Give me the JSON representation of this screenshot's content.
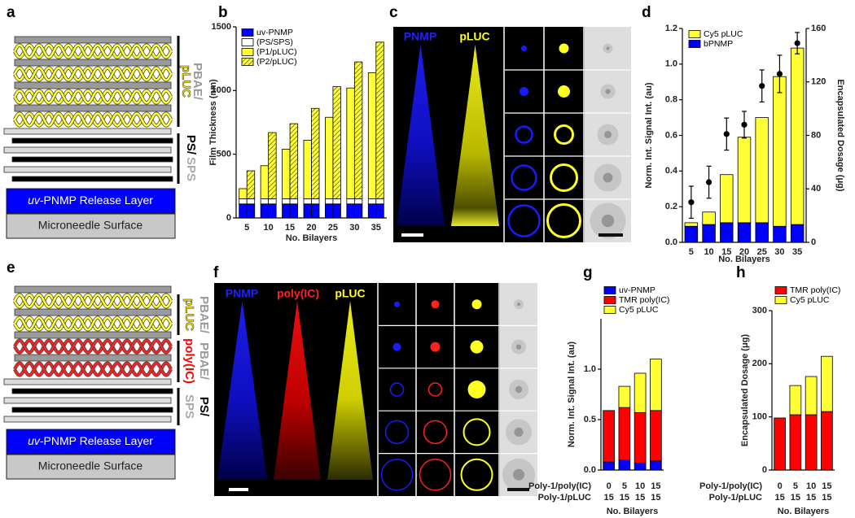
{
  "panels": {
    "a": {
      "letter": "a",
      "release_layer": {
        "prefix": "uv",
        "text": "-PNMP Release Layer"
      },
      "surface": "Microneedle Surface",
      "pbae": "PBAE/",
      "pluc": "pLUC",
      "ps": "PS/",
      "sps": "SPS"
    },
    "c": {
      "letter": "c",
      "channels": [
        "PNMP",
        "pLUC"
      ]
    },
    "e": {
      "letter": "e",
      "release_layer": {
        "prefix": "uv",
        "text": "-PNMP Release Layer"
      },
      "surface": "Microneedle Surface",
      "pbae_1": "PBAE/",
      "pluc": "pLUC",
      "pbae_2": "PBAE/",
      "polyic": "poly(IC)",
      "ps": "PS/",
      "sps": "SPS"
    },
    "f": {
      "letter": "f",
      "channels": [
        "PNMP",
        "poly(IC)",
        "pLUC"
      ]
    }
  },
  "chart_data": [
    {
      "panel": "b",
      "type": "bar",
      "ylabel": "Film Thickness (nm)",
      "xlabel": "No. Bilayers",
      "categories": [
        "5",
        "10",
        "15",
        "20",
        "25",
        "30",
        "35"
      ],
      "ylim": [
        0,
        1500
      ],
      "yticks": [
        0,
        500,
        1000,
        1500
      ],
      "legend": "upper left",
      "series": [
        {
          "name": "uv-PNMP",
          "color": "#0000ff",
          "values": [
            110,
            110,
            110,
            110,
            110,
            110,
            110
          ]
        },
        {
          "name": "(PS/SPS)",
          "color": "#ffffff",
          "values": [
            40,
            40,
            40,
            40,
            40,
            40,
            40
          ]
        },
        {
          "name": "(P1/pLUC)",
          "color": "#ffff33",
          "values": [
            80,
            260,
            390,
            460,
            640,
            870,
            990
          ]
        },
        {
          "name": "(P2/pLUC)",
          "color": "#ffff33",
          "pattern": "hatch",
          "values": [
            220,
            520,
            590,
            710,
            880,
            1075,
            1230
          ]
        }
      ]
    },
    {
      "panel": "d",
      "type": "bar",
      "ylabel": "Norm. Int. Signal Int. (au)",
      "y2label": "Encapsulated Dosage (μg)",
      "xlabel": "No. Bilayers",
      "categories": [
        "5",
        "10",
        "15",
        "20",
        "25",
        "30",
        "35"
      ],
      "ylim": [
        0,
        1.2
      ],
      "yticks": [
        {
          "value": 0,
          "label": "0.0"
        },
        0.2,
        0.4,
        0.6,
        0.8,
        {
          "value": 1,
          "label": "1.0"
        },
        1.2
      ],
      "y2lim": [
        0,
        160
      ],
      "y2ticks": [
        0,
        40,
        80,
        120,
        160
      ],
      "legend": "upper left",
      "series": [
        {
          "name": "Cy5 pLUC",
          "color": "#ffff33",
          "values": [
            0.02,
            0.07,
            0.27,
            0.48,
            0.59,
            0.84,
            0.99
          ]
        },
        {
          "name": "bPNMP",
          "color": "#0000ff",
          "values": [
            0.09,
            0.1,
            0.11,
            0.11,
            0.11,
            0.09,
            0.1
          ]
        },
        {
          "color": "#000000",
          "marker": "dot",
          "axis": "y2",
          "values": [
            30,
            45,
            81,
            88,
            117,
            126,
            149
          ],
          "errors": [
            12,
            12,
            12,
            10,
            12,
            14,
            8
          ]
        }
      ]
    },
    {
      "panel": "g",
      "type": "bar",
      "ylabel": "Norm. Int. Signal Int. (au)",
      "xlabel": "No. Bilayers",
      "category_rows": [
        {
          "label": "Poly-1/poly(IC)",
          "values": [
            0,
            5,
            10,
            15
          ]
        },
        {
          "label": "Poly-1/pLUC",
          "values": [
            15,
            15,
            15,
            15
          ]
        }
      ],
      "ylim": [
        0,
        1.5
      ],
      "yticks": [
        {
          "value": 0,
          "label": "0.0"
        },
        0.5,
        {
          "value": 1,
          "label": "1.0"
        }
      ],
      "legend": "upper left",
      "series": [
        {
          "name": "uv-PNMP",
          "color": "#0000ff",
          "values": [
            0.08,
            0.1,
            0.07,
            0.09
          ]
        },
        {
          "name": "TMR poly(IC)",
          "color": "#ff0000",
          "values": [
            0.51,
            0.52,
            0.5,
            0.5
          ]
        },
        {
          "name": "Cy5 pLUC",
          "color": "#ffff33",
          "values": [
            0,
            0.21,
            0.39,
            0.51
          ]
        }
      ]
    },
    {
      "panel": "h",
      "type": "bar",
      "ylabel": "Encapsulated Dosage (μg)",
      "xlabel": "No. Bilayers",
      "category_rows": [
        {
          "label": "Poly-1/poly(IC)",
          "values": [
            0,
            5,
            10,
            15
          ]
        },
        {
          "label": "Poly-1/pLUC",
          "values": [
            15,
            15,
            15,
            15
          ]
        }
      ],
      "ylim": [
        0,
        300
      ],
      "yticks": [
        0,
        100,
        200,
        300
      ],
      "legend": "upper left",
      "series": [
        {
          "name": "TMR poly(IC)",
          "color": "#ff0000",
          "values": [
            98,
            104,
            104,
            110
          ]
        },
        {
          "name": "Cy5 pLUC",
          "color": "#ffff33",
          "values": [
            0,
            55,
            72,
            104
          ]
        }
      ]
    }
  ]
}
